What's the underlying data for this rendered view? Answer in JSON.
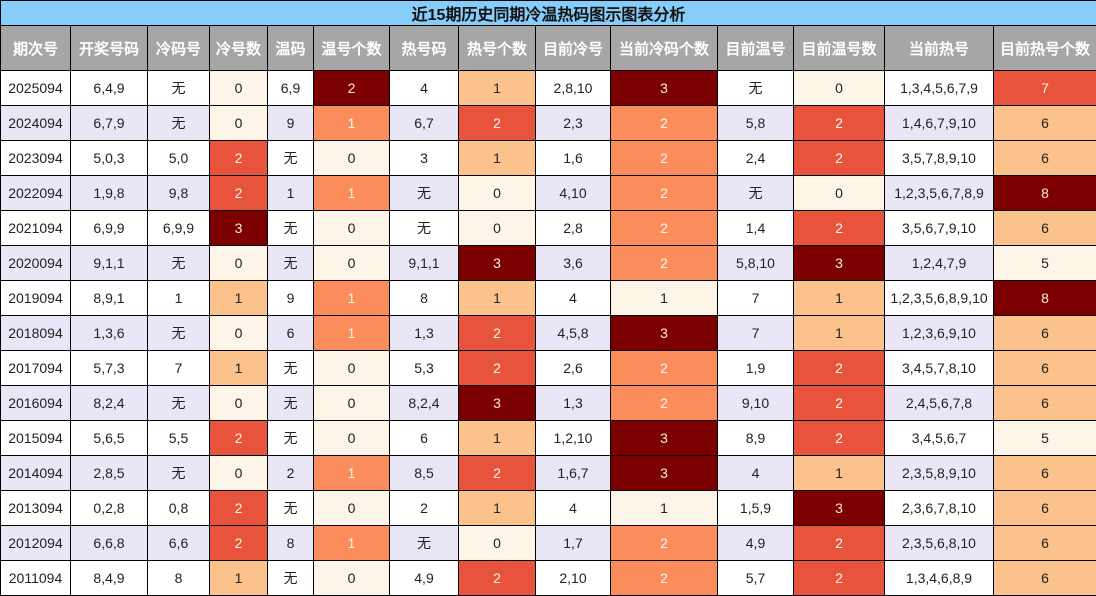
{
  "title": "近15期历史同期冷温热码图示图表分析",
  "headers": [
    "期次号",
    "开奖号码",
    "冷码号",
    "冷号数",
    "温码",
    "温号个数",
    "热号码",
    "热号个数",
    "目前冷号",
    "当前冷码个数",
    "目前温号",
    "目前温号数",
    "当前热号",
    "目前热号个数"
  ],
  "colors": {
    "title_bg": "#87cdf9",
    "header_bg": "#a6a6a6",
    "row_alt_bg": "#ebe6f5",
    "level_0": "#fdf5e8",
    "level_1": "#fcc28b",
    "level_2": "#fb8d5c",
    "level_3": "#e8543b",
    "level_4": "#7d0000"
  },
  "rows": [
    {
      "issue": "2025094",
      "draw": "6,4,9",
      "cold": "无",
      "cold_n": "0",
      "warm": "6,9",
      "warm_n": "2",
      "hot": "4",
      "hot_n": "1",
      "cur_cold": "2,8,10",
      "cur_cold_n": "3",
      "cur_warm": "无",
      "cur_warm_n": "0",
      "cur_hot": "1,3,4,5,6,7,9",
      "cur_hot_n": "7",
      "lv": {
        "cold_n": 0,
        "warm_n": 4,
        "hot_n": 1,
        "cur_cold_n": 4,
        "cur_warm_n": 0,
        "cur_hot_n": 3
      }
    },
    {
      "issue": "2024094",
      "draw": "6,7,9",
      "cold": "无",
      "cold_n": "0",
      "warm": "9",
      "warm_n": "1",
      "hot": "6,7",
      "hot_n": "2",
      "cur_cold": "2,3",
      "cur_cold_n": "2",
      "cur_warm": "5,8",
      "cur_warm_n": "2",
      "cur_hot": "1,4,6,7,9,10",
      "cur_hot_n": "6",
      "lv": {
        "cold_n": 0,
        "warm_n": 2,
        "hot_n": 3,
        "cur_cold_n": 2,
        "cur_warm_n": 3,
        "cur_hot_n": 1
      }
    },
    {
      "issue": "2023094",
      "draw": "5,0,3",
      "cold": "5,0",
      "cold_n": "2",
      "warm": "无",
      "warm_n": "0",
      "hot": "3",
      "hot_n": "1",
      "cur_cold": "1,6",
      "cur_cold_n": "2",
      "cur_warm": "2,4",
      "cur_warm_n": "2",
      "cur_hot": "3,5,7,8,9,10",
      "cur_hot_n": "6",
      "lv": {
        "cold_n": 3,
        "warm_n": 0,
        "hot_n": 1,
        "cur_cold_n": 2,
        "cur_warm_n": 3,
        "cur_hot_n": 1
      }
    },
    {
      "issue": "2022094",
      "draw": "1,9,8",
      "cold": "9,8",
      "cold_n": "2",
      "warm": "1",
      "warm_n": "1",
      "hot": "无",
      "hot_n": "0",
      "cur_cold": "4,10",
      "cur_cold_n": "2",
      "cur_warm": "无",
      "cur_warm_n": "0",
      "cur_hot": "1,2,3,5,6,7,8,9",
      "cur_hot_n": "8",
      "lv": {
        "cold_n": 3,
        "warm_n": 2,
        "hot_n": 0,
        "cur_cold_n": 2,
        "cur_warm_n": 0,
        "cur_hot_n": 4
      }
    },
    {
      "issue": "2021094",
      "draw": "6,9,9",
      "cold": "6,9,9",
      "cold_n": "3",
      "warm": "无",
      "warm_n": "0",
      "hot": "无",
      "hot_n": "0",
      "cur_cold": "2,8",
      "cur_cold_n": "2",
      "cur_warm": "1,4",
      "cur_warm_n": "2",
      "cur_hot": "3,5,6,7,9,10",
      "cur_hot_n": "6",
      "lv": {
        "cold_n": 4,
        "warm_n": 0,
        "hot_n": 0,
        "cur_cold_n": 2,
        "cur_warm_n": 3,
        "cur_hot_n": 1
      }
    },
    {
      "issue": "2020094",
      "draw": "9,1,1",
      "cold": "无",
      "cold_n": "0",
      "warm": "无",
      "warm_n": "0",
      "hot": "9,1,1",
      "hot_n": "3",
      "cur_cold": "3,6",
      "cur_cold_n": "2",
      "cur_warm": "5,8,10",
      "cur_warm_n": "3",
      "cur_hot": "1,2,4,7,9",
      "cur_hot_n": "5",
      "lv": {
        "cold_n": 0,
        "warm_n": 0,
        "hot_n": 4,
        "cur_cold_n": 2,
        "cur_warm_n": 4,
        "cur_hot_n": 0
      }
    },
    {
      "issue": "2019094",
      "draw": "8,9,1",
      "cold": "1",
      "cold_n": "1",
      "warm": "9",
      "warm_n": "1",
      "hot": "8",
      "hot_n": "1",
      "cur_cold": "4",
      "cur_cold_n": "1",
      "cur_warm": "7",
      "cur_warm_n": "1",
      "cur_hot": "1,2,3,5,6,8,9,10",
      "cur_hot_n": "8",
      "lv": {
        "cold_n": 1,
        "warm_n": 2,
        "hot_n": 1,
        "cur_cold_n": 0,
        "cur_warm_n": 1,
        "cur_hot_n": 4
      }
    },
    {
      "issue": "2018094",
      "draw": "1,3,6",
      "cold": "无",
      "cold_n": "0",
      "warm": "6",
      "warm_n": "1",
      "hot": "1,3",
      "hot_n": "2",
      "cur_cold": "4,5,8",
      "cur_cold_n": "3",
      "cur_warm": "7",
      "cur_warm_n": "1",
      "cur_hot": "1,2,3,6,9,10",
      "cur_hot_n": "6",
      "lv": {
        "cold_n": 0,
        "warm_n": 2,
        "hot_n": 3,
        "cur_cold_n": 4,
        "cur_warm_n": 1,
        "cur_hot_n": 1
      }
    },
    {
      "issue": "2017094",
      "draw": "5,7,3",
      "cold": "7",
      "cold_n": "1",
      "warm": "无",
      "warm_n": "0",
      "hot": "5,3",
      "hot_n": "2",
      "cur_cold": "2,6",
      "cur_cold_n": "2",
      "cur_warm": "1,9",
      "cur_warm_n": "2",
      "cur_hot": "3,4,5,7,8,10",
      "cur_hot_n": "6",
      "lv": {
        "cold_n": 1,
        "warm_n": 0,
        "hot_n": 3,
        "cur_cold_n": 2,
        "cur_warm_n": 3,
        "cur_hot_n": 1
      }
    },
    {
      "issue": "2016094",
      "draw": "8,2,4",
      "cold": "无",
      "cold_n": "0",
      "warm": "无",
      "warm_n": "0",
      "hot": "8,2,4",
      "hot_n": "3",
      "cur_cold": "1,3",
      "cur_cold_n": "2",
      "cur_warm": "9,10",
      "cur_warm_n": "2",
      "cur_hot": "2,4,5,6,7,8",
      "cur_hot_n": "6",
      "lv": {
        "cold_n": 0,
        "warm_n": 0,
        "hot_n": 4,
        "cur_cold_n": 2,
        "cur_warm_n": 3,
        "cur_hot_n": 1
      }
    },
    {
      "issue": "2015094",
      "draw": "5,6,5",
      "cold": "5,5",
      "cold_n": "2",
      "warm": "无",
      "warm_n": "0",
      "hot": "6",
      "hot_n": "1",
      "cur_cold": "1,2,10",
      "cur_cold_n": "3",
      "cur_warm": "8,9",
      "cur_warm_n": "2",
      "cur_hot": "3,4,5,6,7",
      "cur_hot_n": "5",
      "lv": {
        "cold_n": 3,
        "warm_n": 0,
        "hot_n": 1,
        "cur_cold_n": 4,
        "cur_warm_n": 3,
        "cur_hot_n": 0
      }
    },
    {
      "issue": "2014094",
      "draw": "2,8,5",
      "cold": "无",
      "cold_n": "0",
      "warm": "2",
      "warm_n": "1",
      "hot": "8,5",
      "hot_n": "2",
      "cur_cold": "1,6,7",
      "cur_cold_n": "3",
      "cur_warm": "4",
      "cur_warm_n": "1",
      "cur_hot": "2,3,5,8,9,10",
      "cur_hot_n": "6",
      "lv": {
        "cold_n": 0,
        "warm_n": 2,
        "hot_n": 3,
        "cur_cold_n": 4,
        "cur_warm_n": 1,
        "cur_hot_n": 1
      }
    },
    {
      "issue": "2013094",
      "draw": "0,2,8",
      "cold": "0,8",
      "cold_n": "2",
      "warm": "无",
      "warm_n": "0",
      "hot": "2",
      "hot_n": "1",
      "cur_cold": "4",
      "cur_cold_n": "1",
      "cur_warm": "1,5,9",
      "cur_warm_n": "3",
      "cur_hot": "2,3,6,7,8,10",
      "cur_hot_n": "6",
      "lv": {
        "cold_n": 3,
        "warm_n": 0,
        "hot_n": 1,
        "cur_cold_n": 0,
        "cur_warm_n": 4,
        "cur_hot_n": 1
      }
    },
    {
      "issue": "2012094",
      "draw": "6,6,8",
      "cold": "6,6",
      "cold_n": "2",
      "warm": "8",
      "warm_n": "1",
      "hot": "无",
      "hot_n": "0",
      "cur_cold": "1,7",
      "cur_cold_n": "2",
      "cur_warm": "4,9",
      "cur_warm_n": "2",
      "cur_hot": "2,3,5,6,8,10",
      "cur_hot_n": "6",
      "lv": {
        "cold_n": 3,
        "warm_n": 2,
        "hot_n": 0,
        "cur_cold_n": 2,
        "cur_warm_n": 3,
        "cur_hot_n": 1
      }
    },
    {
      "issue": "2011094",
      "draw": "8,4,9",
      "cold": "8",
      "cold_n": "1",
      "warm": "无",
      "warm_n": "0",
      "hot": "4,9",
      "hot_n": "2",
      "cur_cold": "2,10",
      "cur_cold_n": "2",
      "cur_warm": "5,7",
      "cur_warm_n": "2",
      "cur_hot": "1,3,4,6,8,9",
      "cur_hot_n": "6",
      "lv": {
        "cold_n": 1,
        "warm_n": 0,
        "hot_n": 3,
        "cur_cold_n": 2,
        "cur_warm_n": 3,
        "cur_hot_n": 1
      }
    }
  ]
}
